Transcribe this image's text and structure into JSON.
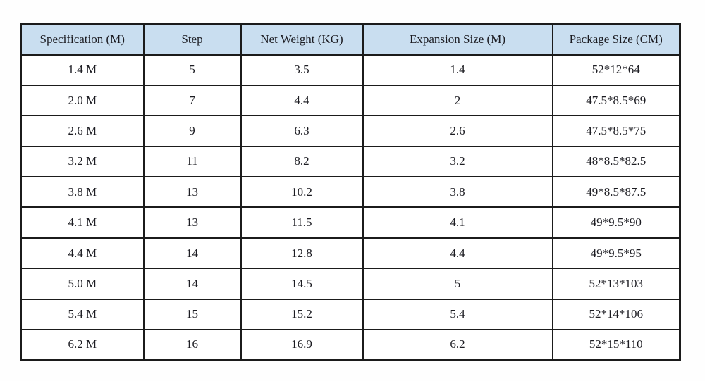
{
  "page": {
    "background": "#fefefe"
  },
  "colors": {
    "header_bg": "#c9def0",
    "border_color": "#1b1b1b",
    "text_color": "#1c1c22"
  },
  "chart_data": {
    "type": "table",
    "columns": [
      "Specification (M)",
      "Step",
      "Net Weight (KG)",
      "Expansion Size (M)",
      "Package Size (CM)"
    ],
    "rows": [
      [
        "1.4 M",
        "5",
        "3.5",
        "1.4",
        "52*12*64"
      ],
      [
        "2.0 M",
        "7",
        "4.4",
        "2",
        "47.5*8.5*69"
      ],
      [
        "2.6 M",
        "9",
        "6.3",
        "2.6",
        "47.5*8.5*75"
      ],
      [
        "3.2 M",
        "11",
        "8.2",
        "3.2",
        "48*8.5*82.5"
      ],
      [
        "3.8 M",
        "13",
        "10.2",
        "3.8",
        "49*8.5*87.5"
      ],
      [
        "4.1 M",
        "13",
        "11.5",
        "4.1",
        "49*9.5*90"
      ],
      [
        "4.4 M",
        "14",
        "12.8",
        "4.4",
        "49*9.5*95"
      ],
      [
        "5.0 M",
        "14",
        "14.5",
        "5",
        "52*13*103"
      ],
      [
        "5.4 M",
        "15",
        "15.2",
        "5.4",
        "52*14*106"
      ],
      [
        "6.2 M",
        "16",
        "16.9",
        "6.2",
        "52*15*110"
      ]
    ]
  }
}
